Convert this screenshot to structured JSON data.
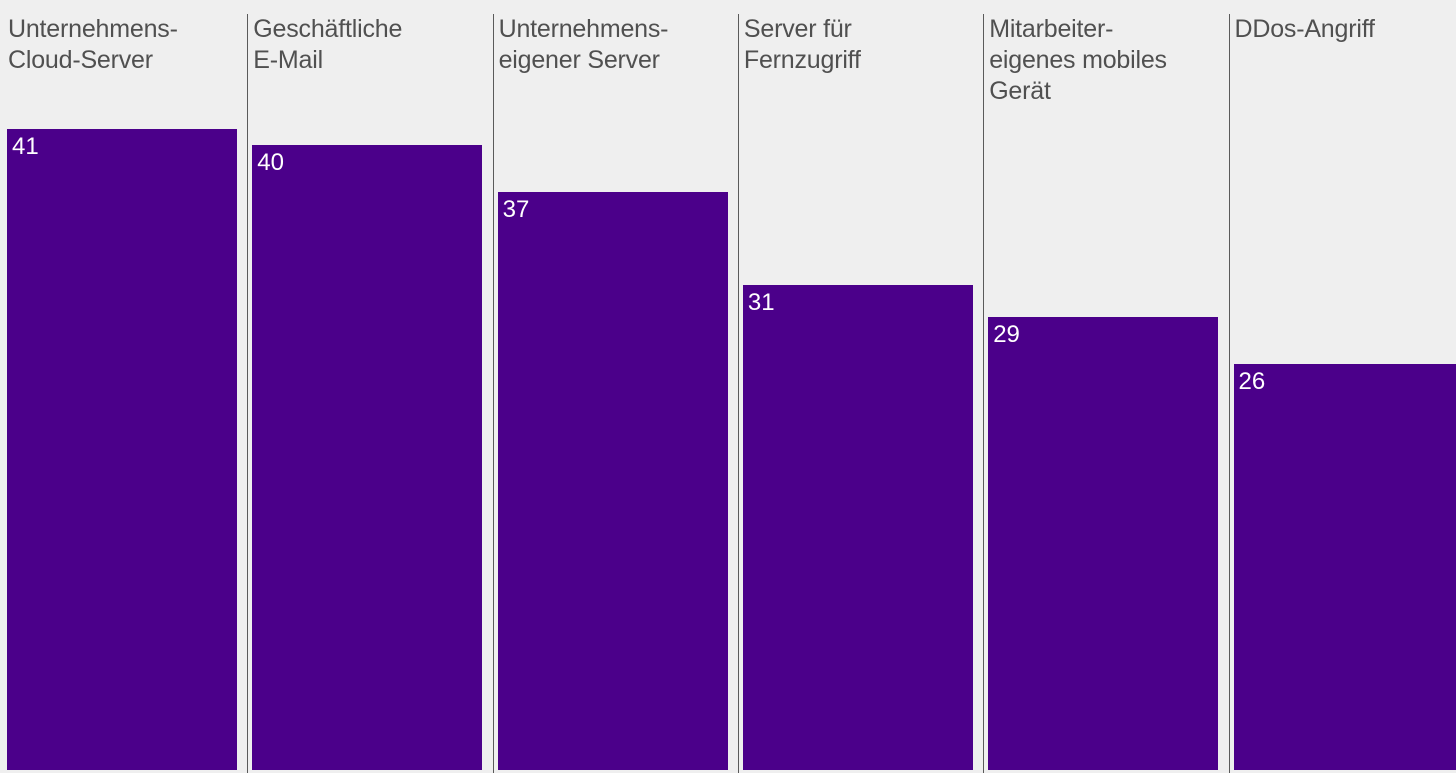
{
  "chart_data": {
    "type": "bar",
    "categories": [
      "Unternehmens-\nCloud-Server",
      "Geschäftliche\nE-Mail",
      "Unternehmens-\neigener Server",
      "Server für\nFernzugriff",
      "Mitarbeiter-\neigenes mobiles\nGerät",
      "DDos-Angriff"
    ],
    "values": [
      41,
      40,
      37,
      31,
      29,
      26
    ],
    "data_labels": [
      "41",
      "40",
      "37",
      "31",
      "29",
      "26"
    ],
    "bar_color": "#4b008a",
    "background_color": "#efefef",
    "grid": false,
    "legend": "none"
  }
}
